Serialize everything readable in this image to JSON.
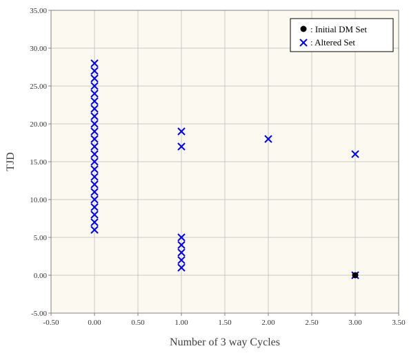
{
  "chart_data": {
    "type": "scatter",
    "xlabel": "Number of 3 way Cycles",
    "ylabel": "TJD",
    "xlim": [
      -0.5,
      3.5
    ],
    "ylim": [
      -5,
      35
    ],
    "x_ticks": [
      "-0.50",
      "0.00",
      "0.50",
      "1.00",
      "1.50",
      "2.00",
      "2.50",
      "3.00",
      "3.50"
    ],
    "y_ticks": [
      "-5.00",
      "0.00",
      "5.00",
      "10.00",
      "15.00",
      "20.00",
      "25.00",
      "30.00",
      "35.00"
    ],
    "grid": true,
    "legend_position": "top-right",
    "colors": {
      "plot_background": "#fcfaf0",
      "grid": "#c8c8c8",
      "altered": "#0000ff",
      "initial": "#000000"
    },
    "series": [
      {
        "name": ": Initial  DM Set",
        "marker": "circle",
        "points": [
          [
            3.0,
            0.0
          ]
        ]
      },
      {
        "name": ": Altered Set",
        "marker": "x",
        "points": [
          [
            0,
            6
          ],
          [
            0,
            7
          ],
          [
            0,
            8
          ],
          [
            0,
            9
          ],
          [
            0,
            10
          ],
          [
            0,
            11
          ],
          [
            0,
            12
          ],
          [
            0,
            13
          ],
          [
            0,
            14
          ],
          [
            0,
            15
          ],
          [
            0,
            16
          ],
          [
            0,
            17
          ],
          [
            0,
            18
          ],
          [
            0,
            19
          ],
          [
            0,
            20
          ],
          [
            0,
            21
          ],
          [
            0,
            22
          ],
          [
            0,
            23
          ],
          [
            0,
            24
          ],
          [
            0,
            25
          ],
          [
            0,
            26
          ],
          [
            0,
            27
          ],
          [
            0,
            28
          ],
          [
            1,
            1
          ],
          [
            1,
            2
          ],
          [
            1,
            3
          ],
          [
            1,
            4
          ],
          [
            1,
            5
          ],
          [
            1,
            17
          ],
          [
            1,
            19
          ],
          [
            2,
            18
          ],
          [
            3,
            0
          ],
          [
            3,
            16
          ]
        ]
      }
    ]
  }
}
